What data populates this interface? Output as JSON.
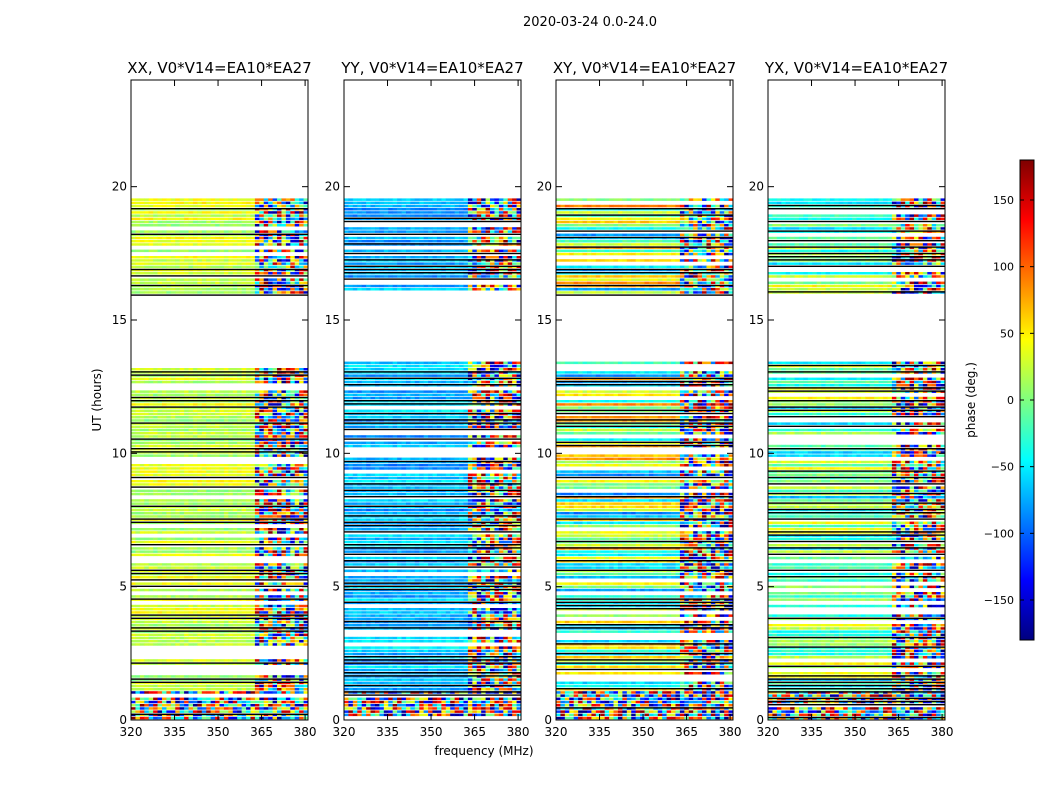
{
  "chart_data": {
    "type": "heatmap",
    "title": "2020-03-24 0.0-24.0",
    "xlabel": "frequency (MHz)",
    "ylabel": "UT (hours)",
    "xlim": [
      320,
      381
    ],
    "ylim": [
      0,
      24
    ],
    "x_ticks": [
      320,
      335,
      350,
      365,
      380
    ],
    "y_ticks": [
      0,
      5,
      10,
      15,
      20
    ],
    "colorbar": {
      "label": "phase (deg.)",
      "range": [
        -180,
        180
      ],
      "ticks": [
        -150,
        -100,
        -50,
        0,
        50,
        100,
        150
      ],
      "tick_labels": [
        "−150",
        "−100",
        "−50",
        "0",
        "50",
        "100",
        "150"
      ],
      "colormap": "jet"
    },
    "data_gaps_ut_hours": [
      [
        13.4,
        16.0
      ],
      [
        19.5,
        24.0
      ]
    ],
    "panels": [
      {
        "title": "XX, V0*V14=EA10*EA27",
        "polarization": "XX",
        "dominant_phase_deg": 25,
        "phase_spread_deg": 40
      },
      {
        "title": "YY, V0*V14=EA10*EA27",
        "polarization": "YY",
        "dominant_phase_deg": -70,
        "phase_spread_deg": 45
      },
      {
        "title": "XY, V0*V14=EA10*EA27",
        "polarization": "XY",
        "dominant_phase_deg": 0,
        "phase_spread_deg": 180
      },
      {
        "title": "YX, V0*V14=EA10*EA27",
        "polarization": "YX",
        "dominant_phase_deg": -10,
        "phase_spread_deg": 120
      }
    ]
  }
}
